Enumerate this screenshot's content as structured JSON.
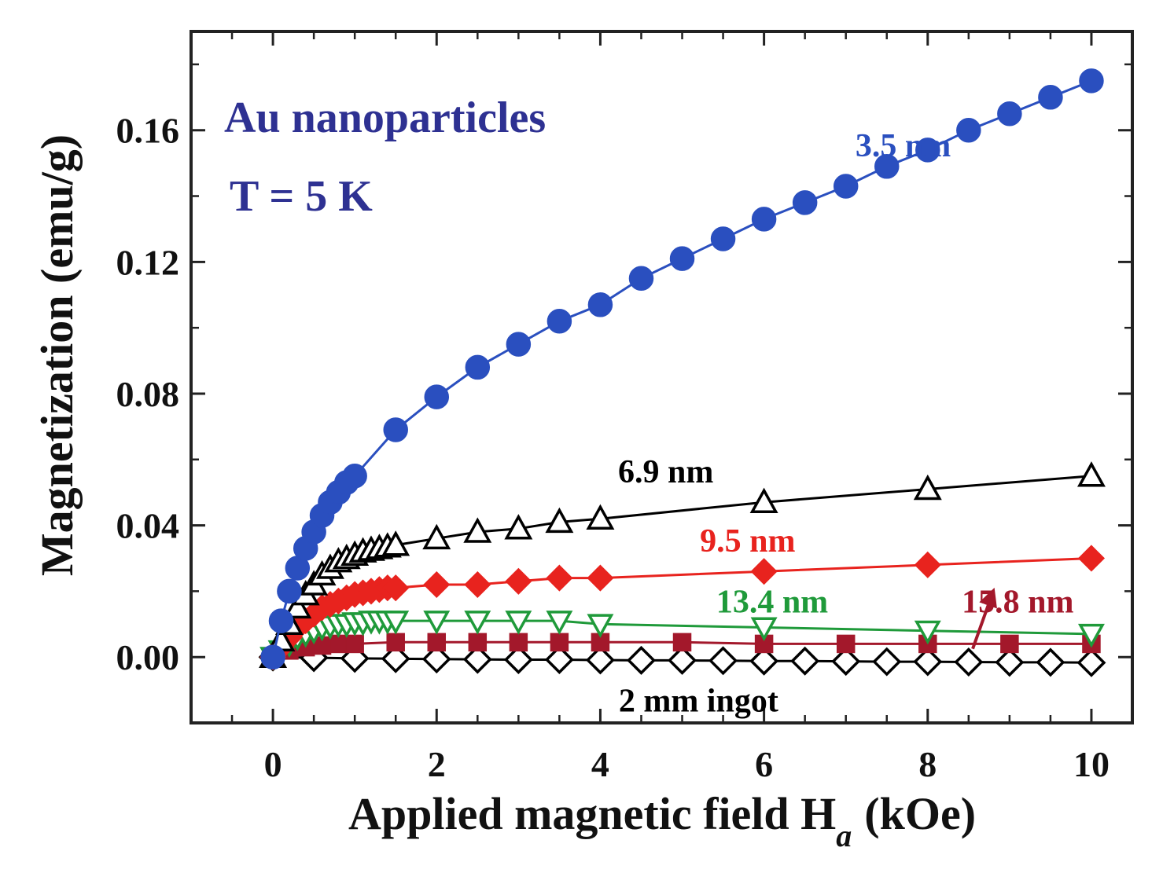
{
  "chart_data": {
    "type": "scatter",
    "title": "Au nanoparticles",
    "subtitle": "T = 5 K",
    "xlabel": "Applied magnetic field H",
    "xlabel_subscript": "a",
    "xlabel_unit": "(kOe)",
    "ylabel": "Magnetization (emu/g)",
    "xlim": [
      -1,
      10.5
    ],
    "ylim": [
      -0.02,
      0.19
    ],
    "x_ticks": [
      0,
      2,
      4,
      6,
      8,
      10
    ],
    "x_tick_labels": [
      "0",
      "2",
      "4",
      "6",
      "8",
      "10"
    ],
    "y_ticks": [
      0,
      0.04,
      0.08,
      0.12,
      0.16
    ],
    "y_tick_labels": [
      "0.00",
      "0.04",
      "0.08",
      "0.12",
      "0.16"
    ],
    "grid": false,
    "series": [
      {
        "name": "3.5 nm",
        "color": "#2a4fbf",
        "marker": "circle",
        "filled": true,
        "x": [
          0,
          0.1,
          0.2,
          0.3,
          0.4,
          0.5,
          0.6,
          0.7,
          0.8,
          0.9,
          1.0,
          1.5,
          2.0,
          2.5,
          3.0,
          3.5,
          4.0,
          4.5,
          5.0,
          5.5,
          6.0,
          6.5,
          7.0,
          7.5,
          8.0,
          8.5,
          9.0,
          9.5,
          10.0
        ],
        "y": [
          0,
          0.011,
          0.02,
          0.027,
          0.033,
          0.038,
          0.043,
          0.047,
          0.05,
          0.053,
          0.055,
          0.069,
          0.079,
          0.088,
          0.095,
          0.102,
          0.107,
          0.115,
          0.121,
          0.127,
          0.133,
          0.138,
          0.143,
          0.149,
          0.154,
          0.16,
          0.165,
          0.17,
          0.175
        ]
      },
      {
        "name": "6.9 nm",
        "color": "#000000",
        "marker": "triangle-up",
        "filled": false,
        "x": [
          0,
          0.1,
          0.2,
          0.3,
          0.4,
          0.5,
          0.6,
          0.7,
          0.8,
          0.9,
          1.0,
          1.1,
          1.2,
          1.3,
          1.4,
          1.5,
          2.0,
          2.5,
          3.0,
          3.5,
          4.0,
          6.0,
          8.0,
          10.0
        ],
        "y": [
          0,
          0.005,
          0.01,
          0.015,
          0.019,
          0.022,
          0.025,
          0.027,
          0.029,
          0.03,
          0.031,
          0.032,
          0.0325,
          0.033,
          0.0335,
          0.034,
          0.036,
          0.038,
          0.039,
          0.041,
          0.042,
          0.047,
          0.051,
          0.055
        ]
      },
      {
        "name": "9.5 nm",
        "color": "#e8231e",
        "marker": "diamond",
        "filled": true,
        "x": [
          0,
          0.1,
          0.2,
          0.3,
          0.4,
          0.5,
          0.6,
          0.7,
          0.8,
          0.9,
          1.0,
          1.1,
          1.2,
          1.3,
          1.4,
          1.5,
          2.0,
          2.5,
          3.0,
          3.5,
          4.0,
          6.0,
          8.0,
          10.0
        ],
        "y": [
          0,
          0.003,
          0.006,
          0.009,
          0.011,
          0.013,
          0.015,
          0.016,
          0.017,
          0.018,
          0.019,
          0.0195,
          0.02,
          0.0205,
          0.021,
          0.021,
          0.022,
          0.022,
          0.023,
          0.024,
          0.024,
          0.026,
          0.028,
          0.03
        ]
      },
      {
        "name": "13.4 nm",
        "color": "#1f9a3a",
        "marker": "triangle-down",
        "filled": false,
        "x": [
          0,
          0.1,
          0.2,
          0.3,
          0.4,
          0.5,
          0.6,
          0.7,
          0.8,
          0.9,
          1.0,
          1.1,
          1.2,
          1.3,
          1.4,
          1.5,
          2.0,
          2.5,
          3.0,
          3.5,
          4.0,
          6.0,
          8.0,
          10.0
        ],
        "y": [
          0,
          0.002,
          0.004,
          0.006,
          0.007,
          0.008,
          0.009,
          0.0095,
          0.01,
          0.01,
          0.0105,
          0.0105,
          0.011,
          0.011,
          0.011,
          0.011,
          0.011,
          0.011,
          0.011,
          0.011,
          0.01,
          0.009,
          0.008,
          0.007
        ]
      },
      {
        "name": "15.8 nm",
        "color": "#a3182b",
        "marker": "square",
        "filled": true,
        "x": [
          0,
          0.2,
          0.4,
          0.6,
          0.8,
          1.0,
          1.5,
          2.0,
          2.5,
          3.0,
          3.5,
          4.0,
          5.0,
          6.0,
          7.0,
          8.0,
          9.0,
          10.0
        ],
        "y": [
          0,
          0.002,
          0.003,
          0.0035,
          0.004,
          0.004,
          0.0045,
          0.0045,
          0.0045,
          0.0045,
          0.0045,
          0.0045,
          0.0045,
          0.004,
          0.004,
          0.004,
          0.004,
          0.004
        ]
      },
      {
        "name": "2 mm ingot",
        "color": "#000000",
        "marker": "diamond",
        "filled": false,
        "x": [
          0,
          0.5,
          1.0,
          1.5,
          2.0,
          2.5,
          3.0,
          3.5,
          4.0,
          4.5,
          5.0,
          5.5,
          6.0,
          6.5,
          7.0,
          7.5,
          8.0,
          8.5,
          9.0,
          9.5,
          10.0
        ],
        "y": [
          0,
          -0.0002,
          -0.0004,
          -0.0005,
          -0.0006,
          -0.0007,
          -0.0008,
          -0.0008,
          -0.0009,
          -0.001,
          -0.001,
          -0.0011,
          -0.0012,
          -0.0012,
          -0.0013,
          -0.0014,
          -0.0014,
          -0.0015,
          -0.0016,
          -0.0016,
          -0.0017
        ]
      }
    ],
    "series_labels": [
      {
        "text": "3.5 nm",
        "x": 7.7,
        "y": 0.152,
        "color": "#2a4fbf"
      },
      {
        "text": "6.9 nm",
        "x": 4.8,
        "y": 0.053,
        "color": "#000000"
      },
      {
        "text": "9.5 nm",
        "x": 5.8,
        "y": 0.032,
        "color": "#e8231e"
      },
      {
        "text": "13.4 nm",
        "x": 6.1,
        "y": 0.0135,
        "color": "#1f9a3a"
      },
      {
        "text": "15.8 nm",
        "x": 9.1,
        "y": 0.0135,
        "color": "#a3182b"
      },
      {
        "text": "2 mm ingot",
        "x": 5.2,
        "y": -0.0165,
        "color": "#000000"
      }
    ],
    "annotation_arrow": {
      "from": [
        8.55,
        0.0025
      ],
      "to": [
        8.8,
        0.02
      ],
      "color": "#a3182b"
    }
  }
}
